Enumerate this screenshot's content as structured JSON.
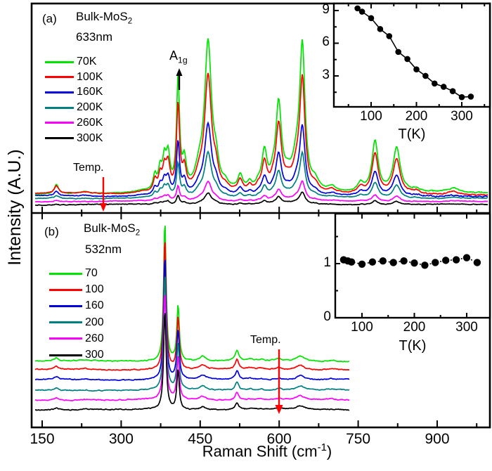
{
  "figure": {
    "ylabel": "Intensity (A.U.)",
    "xlabel_main": "Raman Shift (cm",
    "xlabel_sup": "-1",
    "xlabel_close": ")"
  },
  "panel_a": {
    "tag": "(a)",
    "title": "Bulk-MoS",
    "title_sub": "2",
    "wavelength": "633nm",
    "mode_label": "A",
    "mode_label_sub": "1g",
    "temp_label": "Temp."
  },
  "panel_b": {
    "tag": "(b)",
    "title": "Bulk-MoS",
    "title_sub": "2",
    "wavelength": "532nm",
    "temp_label": "Temp."
  },
  "accent_colors": {
    "arrow_red": "#ff0000",
    "arrow_black": "#000000"
  },
  "chart_data": [
    {
      "id": "panel_a_spectra",
      "type": "line",
      "title": "Bulk-MoS2 633nm temperature-dependent Raman spectra",
      "xlabel": "Raman Shift (cm-1)",
      "ylabel": "Intensity (A.U.)",
      "xlim": [
        130,
        1000
      ],
      "x_ticks": [
        150,
        300,
        450,
        600,
        750,
        900
      ],
      "x_minor_ticks": [
        225,
        375,
        525,
        675,
        825,
        975
      ],
      "legend_position": "upper-left",
      "series": [
        {
          "name": "70K",
          "color": "#00e400",
          "scale": 1.0,
          "baseline_au": 0.8,
          "slope_au": 0.1
        },
        {
          "name": "100K",
          "color": "#fe0000",
          "scale": 0.78,
          "baseline_au": 0.84,
          "slope_au": -0.06
        },
        {
          "name": "160K",
          "color": "#0000e0",
          "scale": 0.47,
          "baseline_au": 0.7,
          "slope_au": -0.02
        },
        {
          "name": "200K",
          "color": "#008080",
          "scale": 0.3,
          "baseline_au": 0.57,
          "slope_au": 0.0
        },
        {
          "name": "260K",
          "color": "#ff00ff",
          "scale": 0.13,
          "baseline_au": 0.4,
          "slope_au": -0.02
        },
        {
          "name": "300K",
          "color": "#000000",
          "scale": 0.08,
          "baseline_au": 0.2,
          "slope_au": 0.0
        }
      ],
      "peaks_cm_w_h": [
        [
          177,
          5,
          0.55
        ],
        [
          230,
          10,
          0.12
        ],
        [
          340,
          18,
          0.15
        ],
        [
          364,
          4,
          0.9
        ],
        [
          374,
          4,
          1.2
        ],
        [
          382,
          4,
          1.6
        ],
        [
          389,
          4.5,
          2.0
        ],
        [
          408,
          3.5,
          6.5
        ],
        [
          420,
          4.5,
          1.6
        ],
        [
          448,
          9,
          1.0
        ],
        [
          465,
          8,
          8.7
        ],
        [
          480,
          6,
          1.2
        ],
        [
          498,
          6,
          0.3
        ],
        [
          526,
          5.5,
          0.85
        ],
        [
          544,
          5,
          0.4
        ],
        [
          560,
          5,
          0.3
        ],
        [
          572,
          6,
          2.2
        ],
        [
          588,
          5,
          0.5
        ],
        [
          599,
          6.5,
          5.0
        ],
        [
          616,
          8,
          0.6
        ],
        [
          633,
          10,
          1.5
        ],
        [
          644,
          6,
          8.2
        ],
        [
          668,
          8,
          0.5
        ],
        [
          700,
          9,
          0.3
        ],
        [
          755,
          7,
          0.5
        ],
        [
          782,
          7,
          3.0
        ],
        [
          823,
          8,
          2.6
        ],
        [
          860,
          9,
          0.2
        ],
        [
          930,
          13,
          0.25
        ]
      ],
      "annotations": [
        "A1g arrow at 408 cm-1",
        "Temp. red arrow pointing down at ~265 cm-1"
      ]
    },
    {
      "id": "panel_b_spectra",
      "type": "line",
      "title": "Bulk-MoS2 532nm temperature-dependent Raman spectra (offset stacked)",
      "xlabel": "Raman Shift (cm-1)",
      "ylabel": "Intensity (A.U.)",
      "xlim": [
        130,
        1000
      ],
      "x_ticks": [
        150,
        300,
        450,
        600,
        750,
        900
      ],
      "x_minor_ticks": [
        225,
        375,
        525,
        675,
        825,
        975
      ],
      "legend_position": "upper-left",
      "series": [
        {
          "name": "70",
          "color": "#00e400",
          "baseline_au": 3.8,
          "peak_scale": 1.0
        },
        {
          "name": "100",
          "color": "#fe0000",
          "baseline_au": 3.3,
          "peak_scale": 0.94
        },
        {
          "name": "160",
          "color": "#0000e0",
          "baseline_au": 2.7,
          "peak_scale": 0.88
        },
        {
          "name": "200",
          "color": "#008080",
          "baseline_au": 2.08,
          "peak_scale": 0.83
        },
        {
          "name": "260",
          "color": "#ff00ff",
          "baseline_au": 1.5,
          "peak_scale": 0.77
        },
        {
          "name": "300",
          "color": "#000000",
          "baseline_au": 0.92,
          "peak_scale": 0.71
        }
      ],
      "peaks_cm_w_h": [
        [
          177,
          5,
          0.18
        ],
        [
          230,
          8,
          0.06
        ],
        [
          383,
          2.8,
          8.3
        ],
        [
          408,
          2.8,
          3.3
        ],
        [
          455,
          7,
          0.28
        ],
        [
          520,
          4,
          0.6
        ],
        [
          545,
          6,
          0.1
        ],
        [
          565,
          6,
          0.08
        ],
        [
          600,
          8,
          0.12
        ],
        [
          640,
          9,
          0.3
        ],
        [
          700,
          8,
          0.06
        ]
      ],
      "annotations": [
        "Temp. red arrow pointing down at ~600 cm-1"
      ]
    },
    {
      "id": "inset_a",
      "type": "scatter",
      "xlabel": "T(K)",
      "x_ticks": [
        100,
        200,
        300
      ],
      "x_minor_ticks": [
        50,
        150,
        250,
        350
      ],
      "y_ticks": [
        3,
        6,
        9
      ],
      "y_minor_ticks": [
        1.5,
        4.5,
        7.5
      ],
      "xlim": [
        18,
        362
      ],
      "ylim": [
        0.16,
        9.65
      ],
      "line": "solid",
      "marker_color": "#000000",
      "points": [
        [
          70,
          9.2
        ],
        [
          80,
          8.9
        ],
        [
          100,
          8.3
        ],
        [
          120,
          7.3
        ],
        [
          140,
          6.65
        ],
        [
          160,
          5.2
        ],
        [
          180,
          4.55
        ],
        [
          200,
          3.6
        ],
        [
          220,
          3.0
        ],
        [
          240,
          2.3
        ],
        [
          260,
          2.0
        ],
        [
          280,
          1.6
        ],
        [
          300,
          1.05
        ],
        [
          320,
          1.1
        ]
      ]
    },
    {
      "id": "inset_b",
      "type": "scatter",
      "xlabel": "T(K)",
      "x_ticks": [
        100,
        200,
        300
      ],
      "x_minor_ticks": [
        150,
        250
      ],
      "y_ticks": [
        0,
        1
      ],
      "y_minor_ticks": [
        0.5,
        1.5
      ],
      "xlim": [
        48,
        345
      ],
      "ylim": [
        0,
        1.92
      ],
      "line": "dotted",
      "marker_color": "#000000",
      "points": [
        [
          65,
          1.07
        ],
        [
          73,
          1.05
        ],
        [
          80,
          1.03
        ],
        [
          100,
          0.99
        ],
        [
          120,
          1.03
        ],
        [
          140,
          1.05
        ],
        [
          160,
          1.02
        ],
        [
          180,
          1.05
        ],
        [
          200,
          1.01
        ],
        [
          220,
          0.97
        ],
        [
          240,
          1.02
        ],
        [
          260,
          1.06
        ],
        [
          280,
          1.07
        ],
        [
          300,
          1.11
        ],
        [
          320,
          1.02
        ]
      ]
    }
  ]
}
